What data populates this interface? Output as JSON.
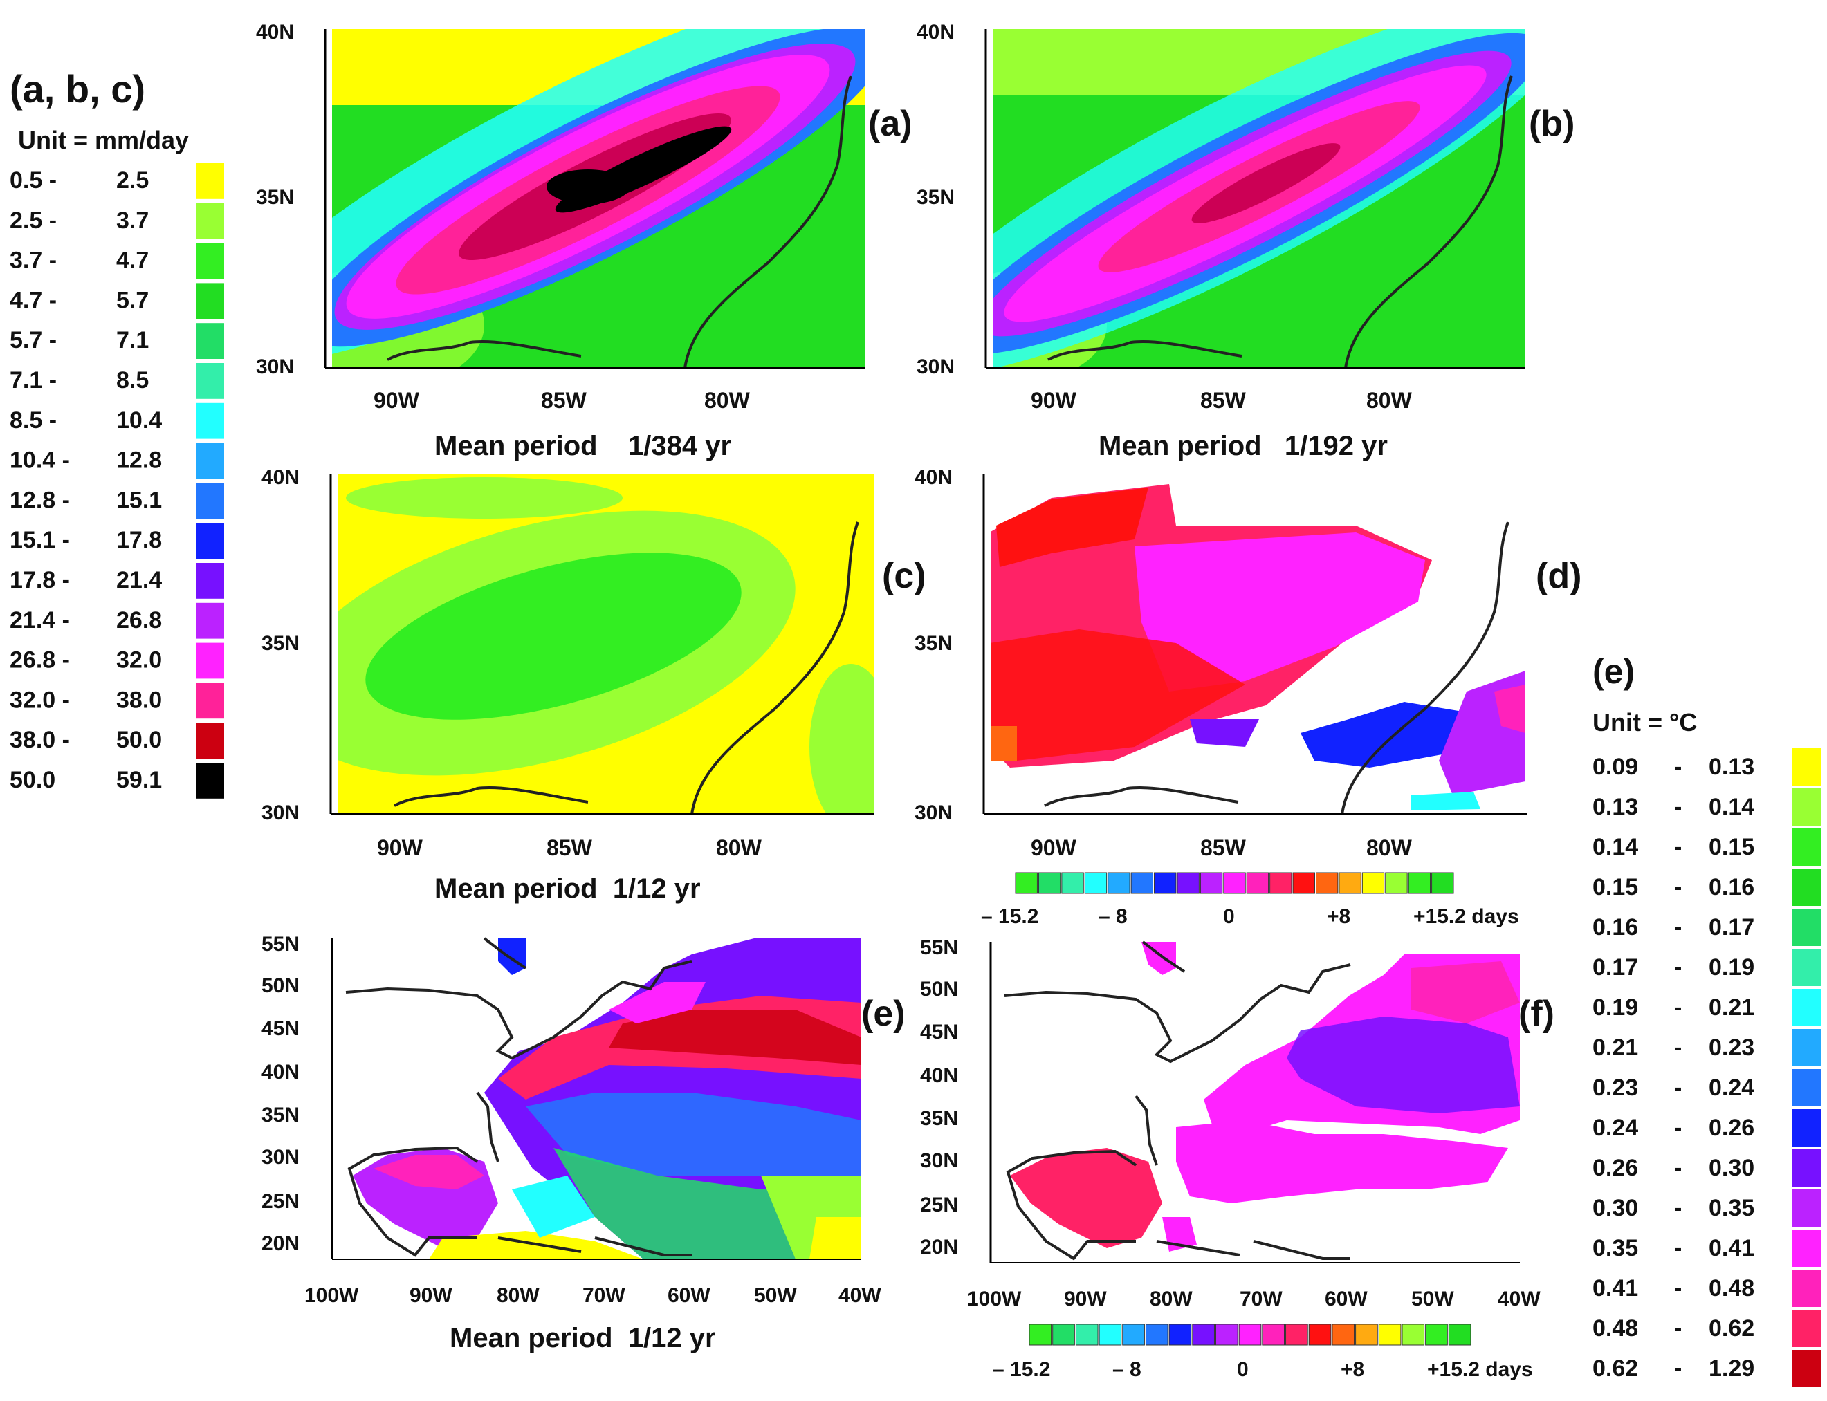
{
  "legend_abc": {
    "title": "(a, b, c)",
    "unit": "Unit = mm/day",
    "bins": [
      {
        "lo": "0.5 -",
        "hi": "2.5",
        "color": "#ffff00"
      },
      {
        "lo": "2.5 -",
        "hi": "3.7",
        "color": "#99ff33"
      },
      {
        "lo": "3.7 -",
        "hi": "4.7",
        "color": "#33ee22"
      },
      {
        "lo": "4.7 -",
        "hi": "5.7",
        "color": "#22dd22"
      },
      {
        "lo": "5.7 -",
        "hi": "7.1",
        "color": "#22dd66"
      },
      {
        "lo": "7.1 -",
        "hi": "8.5",
        "color": "#33eeaa"
      },
      {
        "lo": "8.5 -",
        "hi": "10.4",
        "color": "#22ffff"
      },
      {
        "lo": "10.4 -",
        "hi": "12.8",
        "color": "#22aaff"
      },
      {
        "lo": "12.8 -",
        "hi": "15.1",
        "color": "#2277ff"
      },
      {
        "lo": "15.1 -",
        "hi": "17.8",
        "color": "#1122ff"
      },
      {
        "lo": "17.8 -",
        "hi": "21.4",
        "color": "#7711ff"
      },
      {
        "lo": "21.4 -",
        "hi": "26.8",
        "color": "#bb22ff"
      },
      {
        "lo": "26.8 -",
        "hi": "32.0",
        "color": "#ff22ff"
      },
      {
        "lo": "32.0 -",
        "hi": "38.0",
        "color": "#ff2299"
      },
      {
        "lo": "38.0 -",
        "hi": "50.0",
        "color": "#cc0011"
      },
      {
        "lo": "50.0",
        "hi": "59.1",
        "color": "#000000"
      }
    ]
  },
  "legend_e": {
    "title": "(e)",
    "unit": "Unit = °C",
    "bins": [
      {
        "lo": "0.09",
        "dash": "-",
        "hi": "0.13",
        "color": "#ffff00"
      },
      {
        "lo": "0.13",
        "dash": "-",
        "hi": "0.14",
        "color": "#99ff33"
      },
      {
        "lo": "0.14",
        "dash": "-",
        "hi": "0.15",
        "color": "#33ee22"
      },
      {
        "lo": "0.15",
        "dash": "-",
        "hi": "0.16",
        "color": "#22dd22"
      },
      {
        "lo": "0.16",
        "dash": "-",
        "hi": "0.17",
        "color": "#22dd66"
      },
      {
        "lo": "0.17",
        "dash": "-",
        "hi": "0.19",
        "color": "#33eeaa"
      },
      {
        "lo": "0.19",
        "dash": "-",
        "hi": "0.21",
        "color": "#22ffff"
      },
      {
        "lo": "0.21",
        "dash": "-",
        "hi": "0.23",
        "color": "#22aaff"
      },
      {
        "lo": "0.23",
        "dash": "-",
        "hi": "0.24",
        "color": "#2277ff"
      },
      {
        "lo": "0.24",
        "dash": "-",
        "hi": "0.26",
        "color": "#1122ff"
      },
      {
        "lo": "0.26",
        "dash": "-",
        "hi": "0.30",
        "color": "#7711ff"
      },
      {
        "lo": "0.30",
        "dash": "-",
        "hi": "0.35",
        "color": "#bb22ff"
      },
      {
        "lo": "0.35",
        "dash": "-",
        "hi": "0.41",
        "color": "#ff22ff"
      },
      {
        "lo": "0.41",
        "dash": "-",
        "hi": "0.48",
        "color": "#ff22bb"
      },
      {
        "lo": "0.48",
        "dash": "-",
        "hi": "0.62",
        "color": "#ff2266"
      },
      {
        "lo": "0.62",
        "dash": "-",
        "hi": "1.29",
        "color": "#cc0011"
      }
    ]
  },
  "phase_scale": {
    "colors": [
      "#33ee22",
      "#22dd66",
      "#33eeaa",
      "#22ffff",
      "#22aaff",
      "#2277ff",
      "#1122ff",
      "#7711ff",
      "#bb22ff",
      "#ff22ff",
      "#ff22bb",
      "#ff2266",
      "#ff1111",
      "#ff6611",
      "#ffaa11",
      "#ffff00",
      "#99ff33",
      "#33ee22",
      "#22dd22"
    ],
    "labels": [
      "– 15.2",
      "– 8",
      "0",
      "+8",
      "+15.2 days"
    ]
  },
  "chart_data": [
    {
      "type": "heatmap",
      "panel": "(a)",
      "title": "Mean period    1/384 yr",
      "x_ticks": [
        "90W",
        "85W",
        "80W"
      ],
      "y_ticks": [
        "40N",
        "35N",
        "30N"
      ],
      "xlim": [
        -92,
        -76
      ],
      "ylim": [
        30,
        40
      ],
      "quantity": "amplitude",
      "unit": "mm/day"
    },
    {
      "type": "heatmap",
      "panel": "(b)",
      "title": "Mean period   1/192 yr",
      "x_ticks": [
        "90W",
        "85W",
        "80W"
      ],
      "y_ticks": [
        "40N",
        "35N",
        "30N"
      ],
      "xlim": [
        -92,
        -76
      ],
      "ylim": [
        30,
        40
      ],
      "quantity": "amplitude",
      "unit": "mm/day"
    },
    {
      "type": "heatmap",
      "panel": "(c)",
      "title": "Mean period  1/12 yr",
      "x_ticks": [
        "90W",
        "85W",
        "80W"
      ],
      "y_ticks": [
        "40N",
        "35N",
        "30N"
      ],
      "xlim": [
        -92,
        -76
      ],
      "ylim": [
        30,
        40
      ],
      "quantity": "amplitude",
      "unit": "mm/day"
    },
    {
      "type": "heatmap",
      "panel": "(d)",
      "title": "",
      "x_ticks": [
        "90W",
        "85W",
        "80W"
      ],
      "y_ticks": [
        "40N",
        "35N",
        "30N"
      ],
      "xlim": [
        -92,
        -76
      ],
      "ylim": [
        30,
        40
      ],
      "quantity": "phase",
      "unit": "days"
    },
    {
      "type": "heatmap",
      "panel": "(e)",
      "title": "Mean period  1/12 yr",
      "x_ticks": [
        "100W",
        "90W",
        "80W",
        "70W",
        "60W",
        "50W",
        "40W"
      ],
      "y_ticks": [
        "55N",
        "50N",
        "45N",
        "40N",
        "35N",
        "30N",
        "25N",
        "20N"
      ],
      "xlim": [
        -100,
        -40
      ],
      "ylim": [
        19,
        56
      ],
      "quantity": "amplitude",
      "unit": "°C"
    },
    {
      "type": "heatmap",
      "panel": "(f)",
      "title": "",
      "x_ticks": [
        "100W",
        "90W",
        "80W",
        "70W",
        "60W",
        "50W",
        "40W"
      ],
      "y_ticks": [
        "55N",
        "50N",
        "45N",
        "40N",
        "35N",
        "30N",
        "25N",
        "20N"
      ],
      "xlim": [
        -100,
        -40
      ],
      "ylim": [
        19,
        56
      ],
      "quantity": "phase",
      "unit": "days"
    }
  ]
}
